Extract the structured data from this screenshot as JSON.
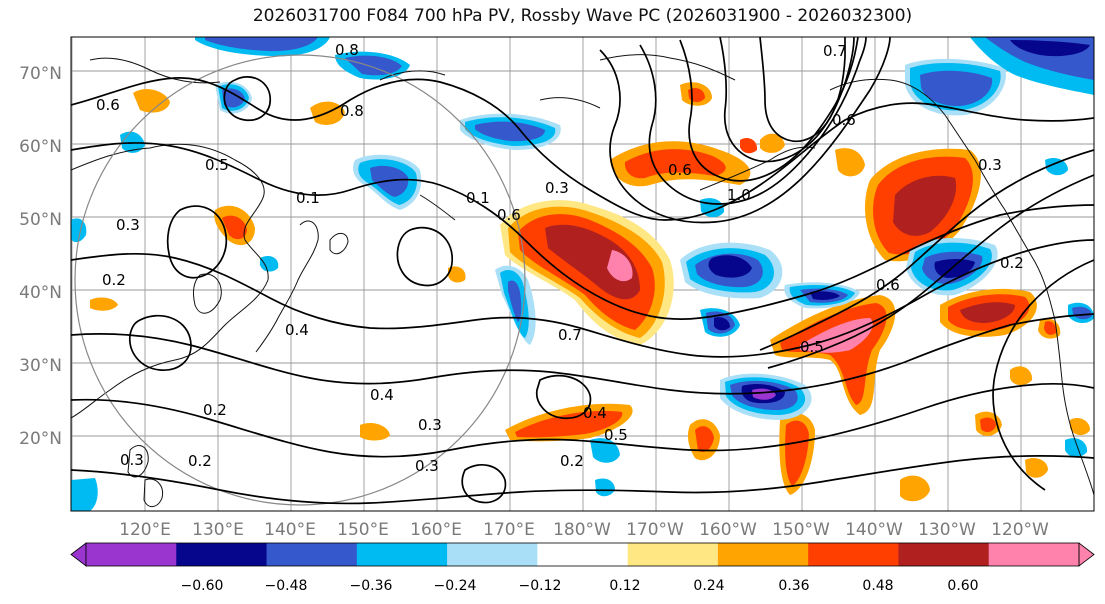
{
  "title": "2026031700 F084 700 hPa PV, Rossby Wave PC (2026031900 - 2026032300)",
  "map": {
    "lat_labels": [
      "70°N",
      "60°N",
      "50°N",
      "40°N",
      "30°N",
      "20°N"
    ],
    "lon_labels": [
      "120°E",
      "130°E",
      "140°E",
      "150°E",
      "160°E",
      "170°E",
      "180°W",
      "170°W",
      "160°W",
      "150°W",
      "140°W",
      "130°W",
      "120°W"
    ],
    "contour_labels": [
      "0.8",
      "0.7",
      "0.6",
      "0.8",
      "0.5",
      "0.3",
      "0.1",
      "0.6",
      "1.0",
      "0.3",
      "0.6",
      "0.2",
      "0.6",
      "0.4",
      "0.4",
      "0.3",
      "0.3",
      "0.4",
      "0.5",
      "0.5",
      "0.2",
      "0.2",
      "0.2",
      "0.2",
      "0.3",
      "0.3",
      "0.6",
      "0.7",
      "0.1"
    ]
  },
  "colorbar": {
    "ticks": [
      "−0.60",
      "−0.48",
      "−0.36",
      "−0.24",
      "−0.12",
      "0.12",
      "0.24",
      "0.36",
      "0.48",
      "0.60"
    ],
    "colors": [
      "#9a35d0",
      "#06068c",
      "#3558cc",
      "#00bbf2",
      "#aadff8",
      "#ffffff",
      "#ffe784",
      "#ffa400",
      "#ff3f00",
      "#b0201f",
      "#ff82ad"
    ]
  }
}
